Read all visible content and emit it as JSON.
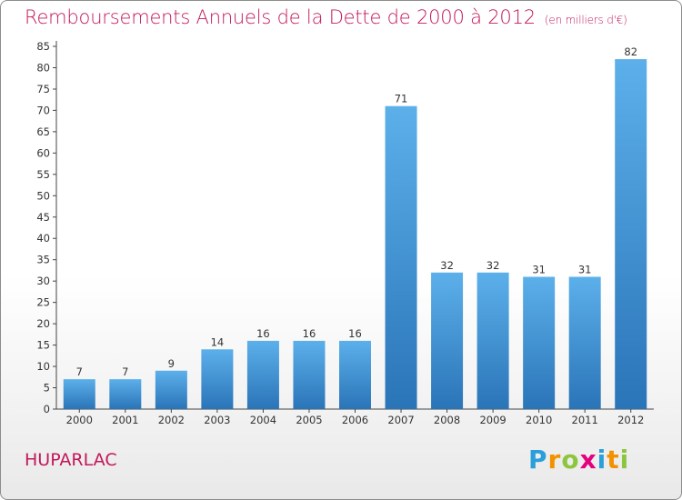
{
  "title": "Remboursements Annuels de la Dette de 2000 à 2012",
  "subtitle": "(en milliers d'€)",
  "commune": "HUPARLAC",
  "logo": {
    "letters": [
      "P",
      "r",
      "o",
      "x",
      "i",
      "t",
      "i"
    ],
    "colors": [
      "#2b9fd9",
      "#f39200",
      "#8cc63f",
      "#e5007e",
      "#2b9fd9",
      "#f39200",
      "#8cc63f"
    ]
  },
  "colors": {
    "bar": "#3a8fd6",
    "bar_light": "#5cb0ea",
    "bar_dark": "#2a74b8",
    "title": "#c2185b"
  },
  "chart_data": {
    "type": "bar",
    "categories": [
      "2000",
      "2001",
      "2002",
      "2003",
      "2004",
      "2005",
      "2006",
      "2007",
      "2008",
      "2009",
      "2010",
      "2011",
      "2012"
    ],
    "values": [
      7,
      7,
      9,
      14,
      16,
      16,
      16,
      71,
      32,
      32,
      31,
      31,
      82
    ],
    "data_labels": [
      "7",
      "7",
      "9",
      "14",
      "16",
      "16",
      "16",
      "71",
      "32",
      "32",
      "31",
      "31",
      "82"
    ],
    "ylim": [
      0,
      85
    ],
    "yticks": [
      "0",
      "5",
      "10",
      "15",
      "20",
      "25",
      "30",
      "35",
      "40",
      "45",
      "50",
      "55",
      "60",
      "65",
      "70",
      "75",
      "80",
      "85"
    ],
    "grid": false,
    "legend": "none"
  }
}
